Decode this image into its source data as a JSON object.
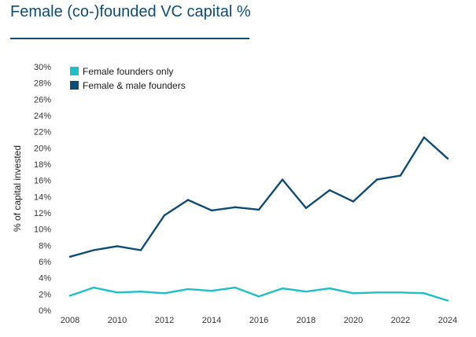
{
  "chart_data": {
    "type": "line",
    "title": "Female (co-)founded VC capital %",
    "xlabel": "",
    "ylabel": "% of capital invested",
    "x": [
      2008,
      2009,
      2010,
      2011,
      2012,
      2013,
      2014,
      2015,
      2016,
      2017,
      2018,
      2019,
      2020,
      2021,
      2022,
      2023,
      2024
    ],
    "x_tick_labels": [
      "2008",
      "2010",
      "2012",
      "2014",
      "2016",
      "2018",
      "2020",
      "2022",
      "2024"
    ],
    "y_tick_labels": [
      "0%",
      "2%",
      "4%",
      "6%",
      "8%",
      "10%",
      "12%",
      "14%",
      "16%",
      "18%",
      "20%",
      "22%",
      "24%",
      "26%",
      "28%",
      "30%"
    ],
    "ylim": [
      0,
      30
    ],
    "xlim": [
      2008,
      2024
    ],
    "grid": false,
    "legend_position": "top-left",
    "series": [
      {
        "name": "Female founders only",
        "color": "#1ebfc6",
        "values": [
          1.8,
          2.8,
          2.2,
          2.3,
          2.1,
          2.6,
          2.4,
          2.8,
          1.7,
          2.7,
          2.3,
          2.7,
          2.1,
          2.2,
          2.2,
          2.1,
          1.2
        ]
      },
      {
        "name": "Female & male founders",
        "color": "#0f4c75",
        "values": [
          6.6,
          7.4,
          7.9,
          7.4,
          11.7,
          13.6,
          12.3,
          12.7,
          12.4,
          16.1,
          12.6,
          14.8,
          13.4,
          16.1,
          16.6,
          21.3,
          18.7
        ]
      }
    ]
  }
}
